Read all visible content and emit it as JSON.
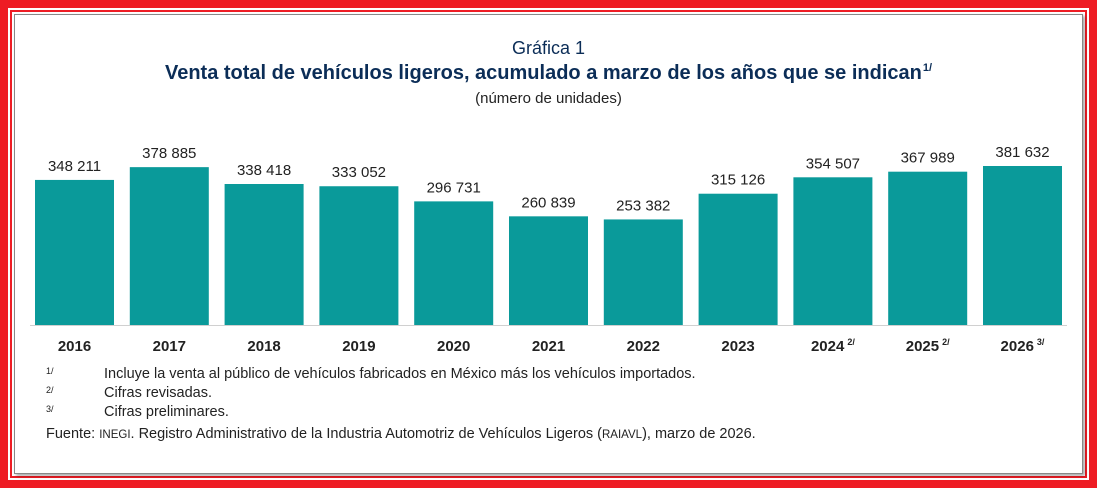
{
  "chart_data": {
    "type": "bar",
    "caption": "Gráfica 1",
    "title": "Venta total de vehículos ligeros, acumulado a marzo de los años que se indican",
    "title_note": "1/",
    "subtitle": "(número de unidades)",
    "categories": [
      "2016",
      "2017",
      "2018",
      "2019",
      "2020",
      "2021",
      "2022",
      "2023",
      "2024",
      "2025",
      "2026"
    ],
    "category_notes": [
      "",
      "",
      "",
      "",
      "",
      "",
      "",
      "",
      "2/",
      "2/",
      "3/"
    ],
    "values": [
      348211,
      378885,
      338418,
      333052,
      296731,
      260839,
      253382,
      315126,
      354507,
      367989,
      381632
    ],
    "value_labels": [
      "348 211",
      "378 885",
      "338 418",
      "333 052",
      "296 731",
      "260 839",
      "253 382",
      "315 126",
      "354 507",
      "367 989",
      "381 632"
    ],
    "ylim": [
      0,
      381632
    ],
    "bar_color": "#0a9a9a",
    "grid": false,
    "legend": "none"
  },
  "notes": [
    {
      "mark": "1/",
      "text": "Incluye la venta al público de vehículos fabricados en México más los vehículos importados."
    },
    {
      "mark": "2/",
      "text": "Cifras revisadas."
    },
    {
      "mark": "3/",
      "text": "Cifras preliminares."
    }
  ],
  "source": {
    "label": "Fuente:",
    "org": "INEGI",
    "text": ". Registro Administrativo de la Industria Automotriz de Vehículos Ligeros (",
    "acronym": "RAIAVL",
    "tail": "), marzo de 2026."
  },
  "colors": {
    "frame": "#ee1c24",
    "title": "#0b2d57",
    "bar": "#0a9a9a"
  }
}
